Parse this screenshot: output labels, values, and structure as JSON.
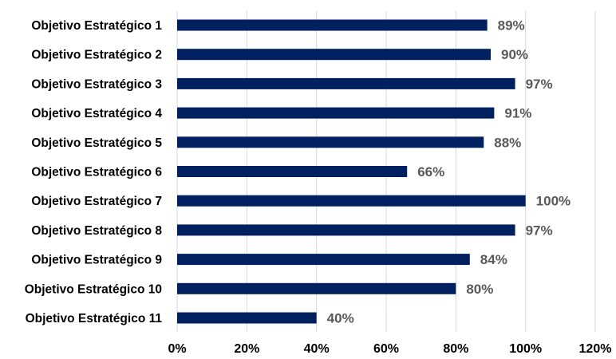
{
  "chart_data": {
    "type": "bar",
    "orientation": "horizontal",
    "categories": [
      "Objetivo Estratégico 1",
      "Objetivo Estratégico 2",
      "Objetivo Estratégico 3",
      "Objetivo Estratégico 4",
      "Objetivo Estratégico 5",
      "Objetivo Estratégico 6",
      "Objetivo Estratégico 7",
      "Objetivo Estratégico 8",
      "Objetivo Estratégico 9",
      "Objetivo Estratégico 10",
      "Objetivo Estratégico 11"
    ],
    "values": [
      89,
      90,
      97,
      91,
      88,
      66,
      100,
      97,
      84,
      80,
      40
    ],
    "data_labels": [
      "89%",
      "90%",
      "97%",
      "91%",
      "88%",
      "66%",
      "100%",
      "97%",
      "84%",
      "80%",
      "40%"
    ],
    "xlim": [
      0,
      120
    ],
    "x_ticks": [
      "0%",
      "20%",
      "40%",
      "60%",
      "80%",
      "100%",
      "120%"
    ],
    "grid": true,
    "legend": false,
    "bar_color": "#002060",
    "label_color": "#595959"
  }
}
